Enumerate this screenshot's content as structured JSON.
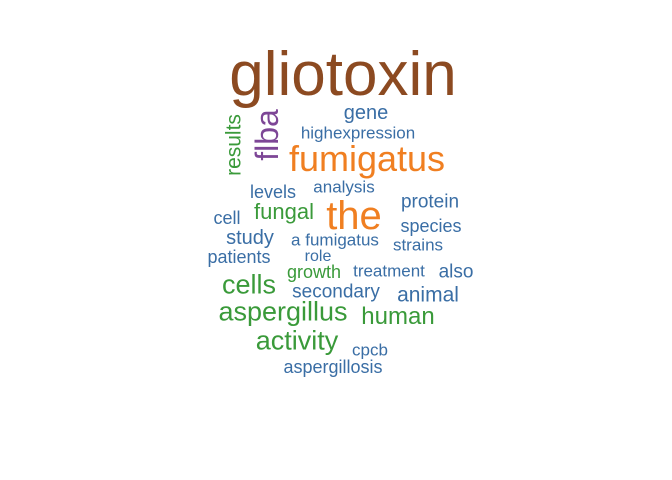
{
  "colors": {
    "brown": "#8c4a21",
    "orange": "#f07f21",
    "purple": "#7d4696",
    "green": "#3a9a3a",
    "blue": "#3a6ea5"
  },
  "words": [
    {
      "text": "gliotoxin",
      "color": "brown"
    },
    {
      "text": "fumigatus",
      "color": "orange"
    },
    {
      "text": "the",
      "color": "orange"
    },
    {
      "text": "flba",
      "color": "purple"
    },
    {
      "text": "results",
      "color": "green"
    },
    {
      "text": "gene",
      "color": "blue"
    },
    {
      "text": "highexpression",
      "color": "blue"
    },
    {
      "text": "levels",
      "color": "blue"
    },
    {
      "text": "analysis",
      "color": "blue"
    },
    {
      "text": "protein",
      "color": "blue"
    },
    {
      "text": "cell",
      "color": "blue"
    },
    {
      "text": "fungal",
      "color": "green"
    },
    {
      "text": "species",
      "color": "blue"
    },
    {
      "text": "study",
      "color": "blue"
    },
    {
      "text": "a fumigatus",
      "color": "blue"
    },
    {
      "text": "strains",
      "color": "blue"
    },
    {
      "text": "patients",
      "color": "blue"
    },
    {
      "text": "role",
      "color": "blue"
    },
    {
      "text": "growth",
      "color": "green"
    },
    {
      "text": "treatment",
      "color": "blue"
    },
    {
      "text": "also",
      "color": "blue"
    },
    {
      "text": "cells",
      "color": "green"
    },
    {
      "text": "secondary",
      "color": "blue"
    },
    {
      "text": "animal",
      "color": "blue"
    },
    {
      "text": "aspergillus",
      "color": "green"
    },
    {
      "text": "human",
      "color": "green"
    },
    {
      "text": "activity",
      "color": "green"
    },
    {
      "text": "cpcb",
      "color": "blue"
    },
    {
      "text": "aspergillosis",
      "color": "blue"
    }
  ]
}
